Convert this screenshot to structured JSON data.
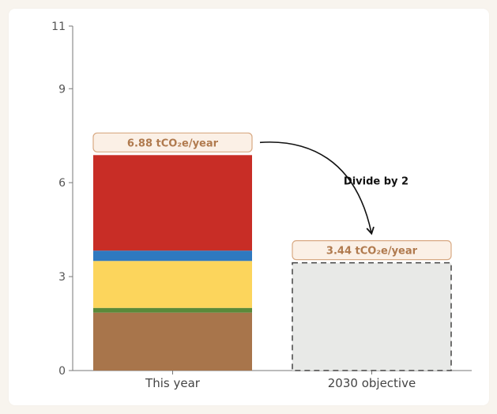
{
  "chart_data": {
    "type": "bar",
    "stacked": true,
    "categories": [
      "This year",
      "2030 objective"
    ],
    "ylim": [
      0,
      11
    ],
    "yticks": [
      0,
      3,
      6,
      9,
      11
    ],
    "grid": false,
    "this_year_segments": [
      {
        "value": 1.85,
        "color": "#a8754b"
      },
      {
        "value": 0.15,
        "color": "#5a8a3a"
      },
      {
        "value": 1.5,
        "color": "#fcd55c"
      },
      {
        "value": 0.33,
        "color": "#2f79c0"
      },
      {
        "value": 3.05,
        "color": "#c82d26"
      }
    ],
    "objective": {
      "value": 3.44,
      "fill": "#e8e9e7",
      "stroke": "#444444",
      "dashed": true
    },
    "labels": {
      "this_year": "6.88 tCO₂e/year",
      "objective": "3.44 tCO₂e/year",
      "annotation": "Divide by 2"
    },
    "badge_fill": "#fbf0e6",
    "badge_stroke": "#d8a983"
  }
}
